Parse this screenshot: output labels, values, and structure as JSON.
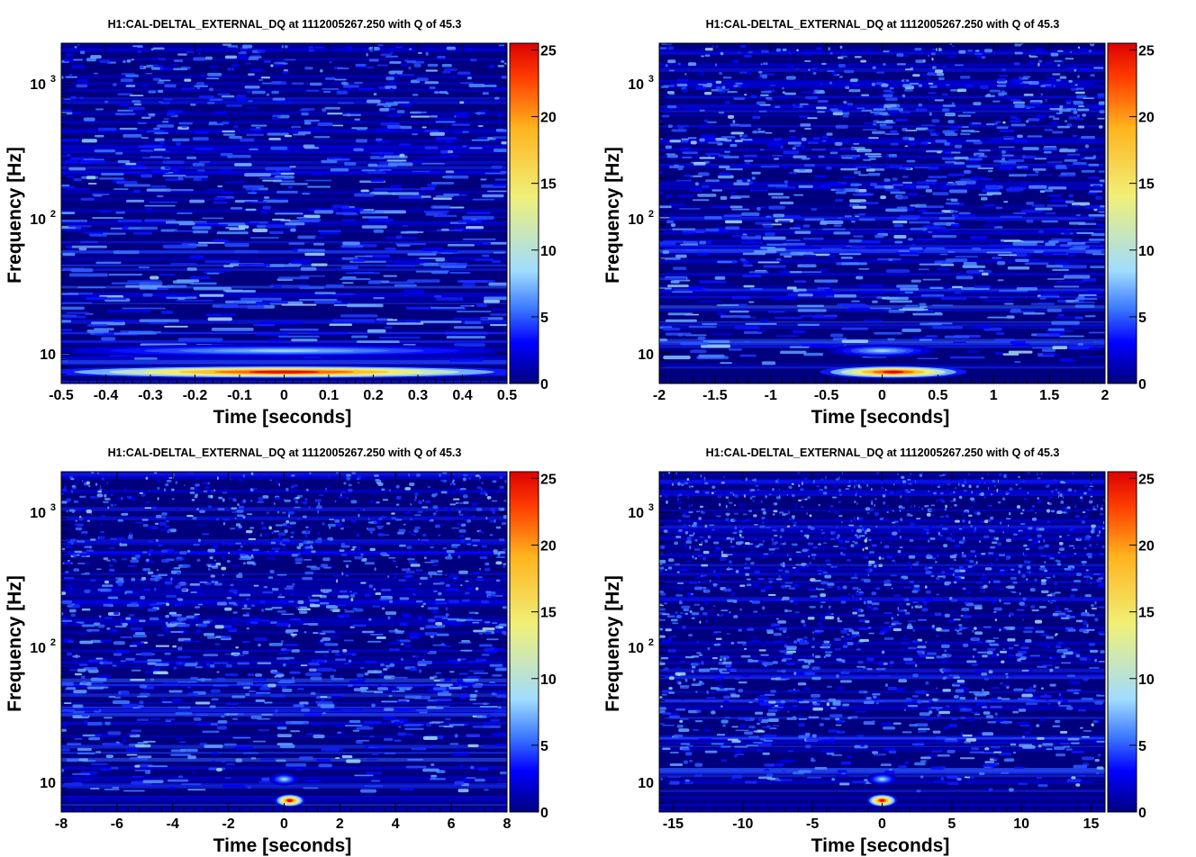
{
  "colormap": [
    "#00007f",
    "#0000ff",
    "#3c78ff",
    "#a0dcff",
    "#f0f078",
    "#ffb41e",
    "#ff3c00",
    "#dc0000"
  ],
  "chart_data": [
    {
      "type": "heatmap",
      "title": "H1:CAL-DELTAL_EXTERNAL_DQ at 1112005267.250 with Q of 45.3",
      "xlabel": "Time [seconds]",
      "ylabel": "Frequency [Hz]",
      "xlim": [
        -0.5,
        0.5
      ],
      "xticks": [
        "-0.5",
        "-0.4",
        "-0.3",
        "-0.2",
        "-0.1",
        "0",
        "0.1",
        "0.2",
        "0.3",
        "0.4",
        "0.5"
      ],
      "ylim": [
        6,
        2000
      ],
      "yscale": "log",
      "yticks": [
        {
          "base": "10",
          "exp": ""
        },
        {
          "base": "10",
          "exp": "2"
        },
        {
          "base": "10",
          "exp": "3"
        }
      ],
      "colorbar": {
        "range": [
          0,
          25.5
        ],
        "ticks": [
          "0",
          "5",
          "10",
          "15",
          "20",
          "25"
        ]
      },
      "features": [
        {
          "t": 0,
          "f": 7.3,
          "energy": 25,
          "duration": 1.0
        },
        {
          "t": 0,
          "f": 10.5,
          "energy": 8,
          "duration": 1.0
        }
      ]
    },
    {
      "type": "heatmap",
      "title": "H1:CAL-DELTAL_EXTERNAL_DQ at 1112005267.250 with Q of 45.3",
      "xlabel": "Time [seconds]",
      "ylabel": "Frequency [Hz]",
      "xlim": [
        -2,
        2
      ],
      "xticks": [
        "-2",
        "-1.5",
        "-1",
        "-0.5",
        "0",
        "0.5",
        "1",
        "1.5",
        "2"
      ],
      "ylim": [
        6,
        2000
      ],
      "yscale": "log",
      "yticks": [
        {
          "base": "10",
          "exp": ""
        },
        {
          "base": "10",
          "exp": "2"
        },
        {
          "base": "10",
          "exp": "3"
        }
      ],
      "colorbar": {
        "range": [
          0,
          25.5
        ],
        "ticks": [
          "0",
          "5",
          "10",
          "15",
          "20",
          "25"
        ]
      },
      "features": [
        {
          "t": 0.1,
          "f": 7.3,
          "energy": 25,
          "duration": 1.2
        },
        {
          "t": 0,
          "f": 10.5,
          "energy": 8,
          "duration": 0.9
        }
      ]
    },
    {
      "type": "heatmap",
      "title": "H1:CAL-DELTAL_EXTERNAL_DQ at 1112005267.250 with Q of 45.3",
      "xlabel": "Time [seconds]",
      "ylabel": "Frequency [Hz]",
      "xlim": [
        -8,
        8
      ],
      "xticks": [
        "-8",
        "-6",
        "-4",
        "-2",
        "0",
        "2",
        "4",
        "6",
        "8"
      ],
      "ylim": [
        6,
        2000
      ],
      "yscale": "log",
      "yticks": [
        {
          "base": "10",
          "exp": ""
        },
        {
          "base": "10",
          "exp": "2"
        },
        {
          "base": "10",
          "exp": "3"
        }
      ],
      "colorbar": {
        "range": [
          0,
          25.5
        ],
        "ticks": [
          "0",
          "5",
          "10",
          "15",
          "20",
          "25"
        ]
      },
      "features": [
        {
          "t": 0.2,
          "f": 7.3,
          "energy": 25,
          "duration": 0.9
        },
        {
          "t": 0,
          "f": 10.5,
          "energy": 8,
          "duration": 0.6
        }
      ]
    },
    {
      "type": "heatmap",
      "title": "H1:CAL-DELTAL_EXTERNAL_DQ at 1112005267.250 with Q of 45.3",
      "xlabel": "Time [seconds]",
      "ylabel": "Frequency [Hz]",
      "xlim": [
        -16,
        16
      ],
      "xticks": [
        "-15",
        "-10",
        "-5",
        "0",
        "5",
        "10",
        "15"
      ],
      "ylim": [
        6,
        2000
      ],
      "yscale": "log",
      "yticks": [
        {
          "base": "10",
          "exp": ""
        },
        {
          "base": "10",
          "exp": "2"
        },
        {
          "base": "10",
          "exp": "3"
        }
      ],
      "colorbar": {
        "range": [
          0,
          25.5
        ],
        "ticks": [
          "0",
          "5",
          "10",
          "15",
          "20",
          "25"
        ]
      },
      "features": [
        {
          "t": 0,
          "f": 7.3,
          "energy": 25,
          "duration": 0.9
        },
        {
          "t": 0,
          "f": 10.5,
          "energy": 8,
          "duration": 0.8
        }
      ]
    }
  ]
}
